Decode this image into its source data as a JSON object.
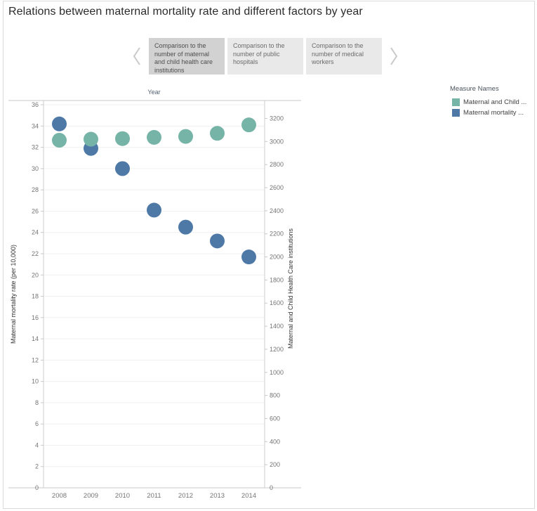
{
  "title": "Relations between maternal mortality rate and different factors by year",
  "carousel": {
    "tabs": [
      {
        "label": "Comparison to the number of maternal and child health care institutions",
        "selected": true
      },
      {
        "label": "Comparison to the number of public hospitals",
        "selected": false
      },
      {
        "label": "Comparison to the number of medical workers",
        "selected": false
      }
    ]
  },
  "legend": {
    "title": "Measure Names",
    "items": [
      {
        "label": "Maternal and Child ...",
        "color": "#76b4a7"
      },
      {
        "label": "Maternal mortality ...",
        "color": "#4e79a7"
      }
    ]
  },
  "chart_data": {
    "type": "scatter",
    "column_header": "Year",
    "x": [
      "2008",
      "2009",
      "2010",
      "2011",
      "2012",
      "2013",
      "2014"
    ],
    "series": [
      {
        "name": "Maternal and Child Health Care institutions",
        "legend_label": "Maternal and Child ...",
        "axis": "right",
        "color": "#76b4a7",
        "values": [
          3011,
          3020,
          3025,
          3036,
          3044,
          3071,
          3144
        ]
      },
      {
        "name": "Maternal mortality rate (per 10,000)",
        "legend_label": "Maternal mortality ...",
        "axis": "left",
        "color": "#4e79a7",
        "values": [
          34.2,
          31.9,
          30.0,
          26.1,
          24.5,
          23.2,
          21.7
        ]
      }
    ],
    "left_axis": {
      "label": "Maternal mortality rate (per 10,000)",
      "min": 0,
      "max": 36.4,
      "tick_step": 2,
      "tick_max": 36
    },
    "right_axis": {
      "label": "Maternal and Child Health Care institutions",
      "min": 0,
      "max": 3355,
      "tick_step": 200,
      "tick_max": 3200
    },
    "grid": "horizontal",
    "legend_position": "right",
    "marker_radius": 10.5
  }
}
